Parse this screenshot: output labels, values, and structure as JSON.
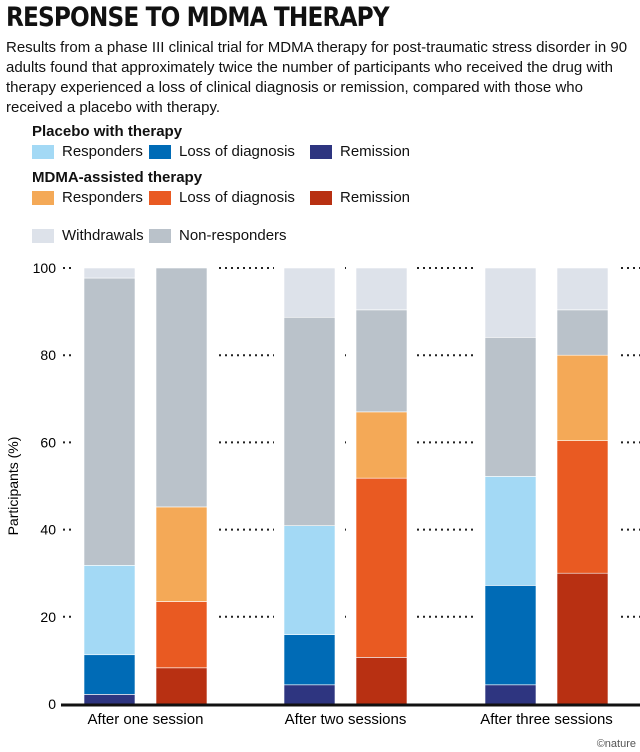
{
  "title": "RESPONSE TO MDMA THERAPY",
  "subtitle": "Results from a phase III clinical trial for MDMA therapy for post-traumatic stress disorder in 90 adults found that approximately twice the number of participants who received the drug with therapy experienced a loss of clinical diagnosis or remission, compared with those who received a placebo with therapy.",
  "legend": {
    "placebo_heading": "Placebo with therapy",
    "mdma_heading": "MDMA-assisted therapy",
    "items": [
      {
        "label": "Responders",
        "color": "#a3d9f5"
      },
      {
        "label": "Loss of diagnosis",
        "color": "#006bb6"
      },
      {
        "label": "Remission",
        "color": "#2e3580"
      },
      {
        "label": "Responders",
        "color": "#f4a957"
      },
      {
        "label": "Loss of diagnosis",
        "color": "#e95a22"
      },
      {
        "label": "Remission",
        "color": "#b83012"
      },
      {
        "label": "Withdrawals",
        "color": "#dde2ea"
      },
      {
        "label": "Non-responders",
        "color": "#bac2ca"
      }
    ]
  },
  "credit": "©nature",
  "chart_data": {
    "type": "stacked-bar",
    "ylabel": "Participants (%)",
    "ylim": [
      0,
      100
    ],
    "yticks": [
      0,
      20,
      40,
      60,
      80,
      100
    ],
    "grid": true,
    "categories": [
      "After one session",
      "After two sessions",
      "After three sessions"
    ],
    "bars": [
      {
        "group": 0,
        "arm": "Placebo with therapy",
        "segments": [
          {
            "k": "Remission",
            "v": 2.2,
            "c": "#2e3580"
          },
          {
            "k": "Loss of diagnosis",
            "v": 9.1,
            "c": "#006bb6"
          },
          {
            "k": "Responders",
            "v": 20.5,
            "c": "#a3d9f5"
          },
          {
            "k": "Non-responders",
            "v": 65.9,
            "c": "#bac2ca"
          },
          {
            "k": "Withdrawals",
            "v": 2.3,
            "c": "#dde2ea"
          }
        ]
      },
      {
        "group": 0,
        "arm": "MDMA-assisted therapy",
        "segments": [
          {
            "k": "Remission",
            "v": 8.3,
            "c": "#b83012"
          },
          {
            "k": "Loss of diagnosis",
            "v": 15.2,
            "c": "#e95a22"
          },
          {
            "k": "Responders",
            "v": 21.7,
            "c": "#f4a957"
          },
          {
            "k": "Non-responders",
            "v": 54.8,
            "c": "#bac2ca"
          },
          {
            "k": "Withdrawals",
            "v": 0,
            "c": "#dde2ea"
          }
        ]
      },
      {
        "group": 1,
        "arm": "Placebo with therapy",
        "segments": [
          {
            "k": "Remission",
            "v": 4.4,
            "c": "#2e3580"
          },
          {
            "k": "Loss of diagnosis",
            "v": 11.5,
            "c": "#006bb6"
          },
          {
            "k": "Responders",
            "v": 25.0,
            "c": "#a3d9f5"
          },
          {
            "k": "Non-responders",
            "v": 47.8,
            "c": "#bac2ca"
          },
          {
            "k": "Withdrawals",
            "v": 11.3,
            "c": "#dde2ea"
          }
        ]
      },
      {
        "group": 1,
        "arm": "MDMA-assisted therapy",
        "segments": [
          {
            "k": "Remission",
            "v": 10.7,
            "c": "#b83012"
          },
          {
            "k": "Loss of diagnosis",
            "v": 41.1,
            "c": "#e95a22"
          },
          {
            "k": "Responders",
            "v": 15.2,
            "c": "#f4a957"
          },
          {
            "k": "Non-responders",
            "v": 23.4,
            "c": "#bac2ca"
          },
          {
            "k": "Withdrawals",
            "v": 9.6,
            "c": "#dde2ea"
          }
        ]
      },
      {
        "group": 2,
        "arm": "Placebo with therapy",
        "segments": [
          {
            "k": "Remission",
            "v": 4.4,
            "c": "#2e3580"
          },
          {
            "k": "Loss of diagnosis",
            "v": 22.8,
            "c": "#006bb6"
          },
          {
            "k": "Responders",
            "v": 25.0,
            "c": "#a3d9f5"
          },
          {
            "k": "Non-responders",
            "v": 31.9,
            "c": "#bac2ca"
          },
          {
            "k": "Withdrawals",
            "v": 15.9,
            "c": "#dde2ea"
          }
        ]
      },
      {
        "group": 2,
        "arm": "MDMA-assisted therapy",
        "segments": [
          {
            "k": "Remission",
            "v": 30.0,
            "c": "#b83012"
          },
          {
            "k": "Loss of diagnosis",
            "v": 30.4,
            "c": "#e95a22"
          },
          {
            "k": "Responders",
            "v": 19.6,
            "c": "#f4a957"
          },
          {
            "k": "Non-responders",
            "v": 10.4,
            "c": "#bac2ca"
          },
          {
            "k": "Withdrawals",
            "v": 9.6,
            "c": "#dde2ea"
          }
        ]
      }
    ]
  }
}
